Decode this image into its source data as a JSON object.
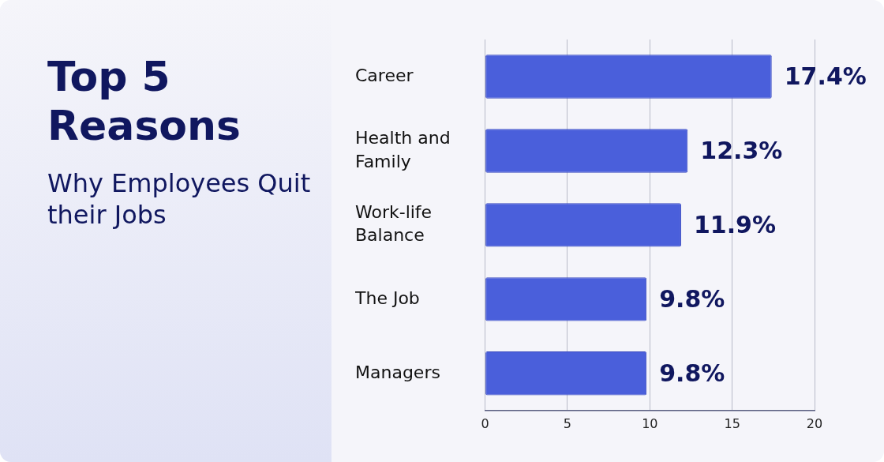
{
  "chart_data": {
    "type": "bar",
    "orientation": "horizontal",
    "title": "Top 5 Reasons",
    "subtitle": "Why Employees Quit their Jobs",
    "categories": [
      "Career",
      "Health and Family",
      "Work-life Balance",
      "The Job",
      "Managers"
    ],
    "values": [
      17.4,
      12.3,
      11.9,
      9.8,
      9.8
    ],
    "value_labels": [
      "17.4%",
      "12.3%",
      "11.9%",
      "9.8%",
      "9.8%"
    ],
    "color": "#4a5fdb",
    "xlim": [
      0,
      20
    ],
    "xticks": [
      0,
      5,
      10,
      15,
      20
    ],
    "grid": "x",
    "legend": false
  }
}
